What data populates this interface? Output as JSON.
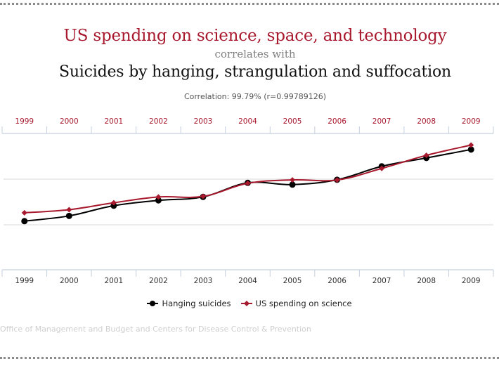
{
  "header": {
    "title_variable_1": "US spending on science, space, and technology",
    "connector": "correlates with",
    "title_variable_2": "Suicides by hanging, strangulation and suffocation",
    "correlation_text": "Correlation: 99.79% (r=0.99789126)"
  },
  "footer": {
    "source": "Office of Management and Budget and Centers for Disease Control & Prevention"
  },
  "colors": {
    "series_1": "#000000",
    "series_2": "#a8192e",
    "axis_label_top": "#a8192e",
    "axis_label_bottom": "#333333",
    "axis_line": "#c5d0de",
    "grid": "#d8d8d8"
  },
  "chart_data": {
    "type": "line",
    "title": "US spending on science, space, and technology correlates with Suicides by hanging, strangulation and suffocation",
    "subtitle": "Correlation: 99.79% (r=0.99789126)",
    "xlabel": "",
    "ylabel": "",
    "x": [
      "1999",
      "2000",
      "2001",
      "2002",
      "2003",
      "2004",
      "2005",
      "2006",
      "2007",
      "2008",
      "2009"
    ],
    "top_axis_labels": [
      "1999",
      "2000",
      "2001",
      "2002",
      "2003",
      "2004",
      "2005",
      "2006",
      "2007",
      "2008",
      "2009"
    ],
    "bottom_axis_labels": [
      "1999",
      "2000",
      "2001",
      "2002",
      "2003",
      "2004",
      "2005",
      "2006",
      "2007",
      "2008",
      "2009"
    ],
    "grid": true,
    "y_ticks_shown": false,
    "legend": {
      "position": "bottom-center",
      "entries": [
        "Hanging suicides",
        "US spending on science"
      ]
    },
    "series": [
      {
        "name": "Hanging suicides",
        "color": "#000000",
        "marker": "circle",
        "axis": "left",
        "values": [
          5427,
          5688,
          6198,
          6462,
          6635,
          7336,
          7248,
          7491,
          8161,
          8578,
          9000
        ],
        "ylim": [
          3000,
          9800
        ]
      },
      {
        "name": "US spending on science",
        "color": "#a8192e",
        "marker": "diamond",
        "axis": "right",
        "values": [
          18079,
          18594,
          19753,
          20734,
          20831,
          23029,
          23597,
          23584,
          25525,
          27731,
          29449
        ],
        "ylim": [
          8500,
          31400
        ]
      }
    ]
  }
}
